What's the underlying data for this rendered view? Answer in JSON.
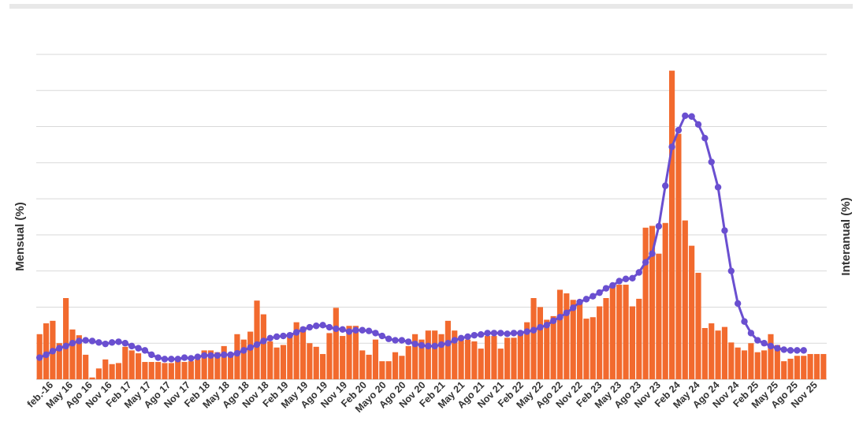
{
  "chart_data": {
    "type": "bar+line",
    "title": "",
    "y_left_label": "Mensual (%)",
    "y_right_label": "Interanual (%)",
    "grid": true,
    "x_tick_labels": [
      "feb.-16",
      "May 16",
      "Ago 16",
      "Nov 16",
      "Feb 17",
      "May 17",
      "Ago 17",
      "Nov 17",
      "Feb 18",
      "May 18",
      "Ago 18",
      "Nov 18",
      "Feb 19",
      "May 19",
      "Ago 19",
      "Nov 19",
      "Feb 20",
      "Mayo 20",
      "Ago 20",
      "Nov 20",
      "Feb 21",
      "May 21",
      "Ago 21",
      "Nov 21",
      "Feb 22",
      "May 22",
      "Ago 22",
      "Nov 22",
      "Feb 23",
      "May 23",
      "Ago 23",
      "Nov 23",
      "Feb 24",
      "May 24",
      "Ago 24",
      "Nov 24",
      "Feb 25",
      "May 25",
      "Ago 25",
      "Nov 25"
    ],
    "y_left_range": [
      0,
      9
    ],
    "y_right_range": [
      0,
      450
    ],
    "series": [
      {
        "kind": "bar",
        "color": "#f26a2e",
        "values": [
          1.25,
          1.55,
          1.62,
          1.0,
          2.25,
          1.38,
          1.22,
          0.68,
          0.05,
          0.3,
          0.55,
          0.42,
          0.45,
          0.9,
          0.8,
          0.72,
          0.48,
          0.48,
          0.48,
          0.45,
          0.45,
          0.52,
          0.48,
          0.5,
          0.55,
          0.8,
          0.8,
          0.75,
          0.92,
          0.65,
          1.25,
          1.1,
          1.32,
          2.18,
          1.8,
          1.05,
          0.88,
          0.95,
          1.2,
          1.58,
          1.45,
          1.0,
          0.9,
          0.7,
          1.28,
          1.98,
          1.2,
          1.48,
          1.48,
          0.8,
          0.68,
          1.1,
          0.5,
          0.5,
          0.75,
          0.65,
          0.92,
          1.25,
          1.1,
          1.35,
          1.35,
          1.25,
          1.62,
          1.35,
          1.08,
          1.1,
          1.05,
          0.85,
          1.2,
          1.2,
          0.85,
          1.15,
          1.15,
          1.3,
          1.58,
          2.25,
          2.0,
          1.65,
          1.75,
          2.48,
          2.38,
          2.2,
          2.1,
          1.68,
          1.72,
          2.02,
          2.25,
          2.55,
          2.62,
          2.62,
          2.02,
          2.23,
          4.2,
          4.25,
          3.48,
          4.33,
          8.55,
          6.8,
          4.4,
          3.7,
          2.95,
          1.42,
          1.55,
          1.35,
          1.45,
          1.02,
          0.88,
          0.8,
          1.0,
          0.75,
          0.8,
          1.25,
          0.95,
          0.5,
          0.57,
          0.65,
          0.65,
          0.7,
          0.7,
          0.7
        ],
        "bar_colors_note": "single color"
      },
      {
        "kind": "line",
        "color": "#6a4fd0",
        "values": [
          30,
          34,
          39,
          43,
          46,
          50,
          53,
          54,
          53,
          51,
          49,
          51,
          52,
          50,
          46,
          43,
          40,
          34,
          30,
          28,
          28,
          28,
          30,
          29,
          31,
          33,
          33,
          33,
          34,
          34,
          36,
          40,
          44,
          48,
          53,
          57,
          59,
          60,
          61,
          65,
          69,
          72,
          74,
          75,
          72,
          70,
          69,
          66,
          68,
          68,
          67,
          64,
          60,
          56,
          54,
          54,
          52,
          49,
          47,
          46,
          46,
          48,
          50,
          54,
          57,
          59,
          61,
          62,
          64,
          64,
          64,
          63,
          64,
          64,
          66,
          68,
          72,
          75,
          81,
          86,
          92,
          99,
          107,
          111,
          115,
          120,
          126,
          130,
          136,
          139,
          140,
          148,
          162,
          174,
          212,
          268,
          322,
          345,
          365,
          364,
          353,
          334,
          301,
          266,
          206,
          150,
          105,
          80,
          64,
          54,
          50,
          46,
          43,
          41,
          40,
          40,
          40
        ],
        "ylim": [
          0,
          450
        ]
      }
    ]
  }
}
